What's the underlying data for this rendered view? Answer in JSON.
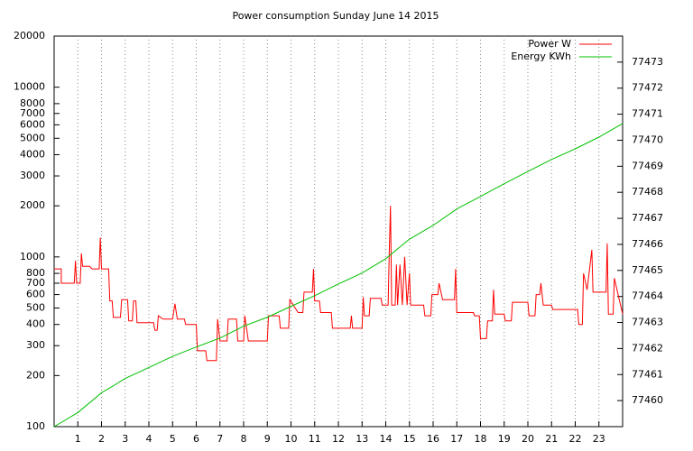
{
  "chart_data": {
    "type": "line",
    "title": "Power consumption Sunday June 14 2015",
    "xlim": [
      0,
      24
    ],
    "xticks": [
      1,
      2,
      3,
      4,
      5,
      6,
      7,
      8,
      9,
      10,
      11,
      12,
      13,
      14,
      15,
      16,
      17,
      18,
      19,
      20,
      21,
      22,
      23
    ],
    "ylim": [
      100,
      20000
    ],
    "log_y": true,
    "yticks": [
      100,
      200,
      300,
      400,
      500,
      600,
      700,
      800,
      1000,
      2000,
      3000,
      4000,
      5000,
      6000,
      7000,
      8000,
      10000,
      20000
    ],
    "y2lim": [
      77459,
      77474
    ],
    "y2ticks": [
      77460,
      77461,
      77462,
      77463,
      77464,
      77465,
      77466,
      77467,
      77468,
      77469,
      77470,
      77471,
      77472,
      77473
    ],
    "grid": "x",
    "legend": "top-right",
    "series": [
      {
        "name": "Power W",
        "color": "#ff0000",
        "x": [
          0,
          0.3,
          0.3,
          0.85,
          0.9,
          0.95,
          1.1,
          1.15,
          1.2,
          1.5,
          1.6,
          1.9,
          1.95,
          2.0,
          2.3,
          2.35,
          2.45,
          2.5,
          2.8,
          2.85,
          3.1,
          3.15,
          3.3,
          3.35,
          3.45,
          3.5,
          4.2,
          4.25,
          4.35,
          4.4,
          4.6,
          5.0,
          5.1,
          5.2,
          5.5,
          5.55,
          6.0,
          6.05,
          6.4,
          6.45,
          6.85,
          6.9,
          7.0,
          7.3,
          7.35,
          7.7,
          7.75,
          8.0,
          8.05,
          8.2,
          9.0,
          9.05,
          9.5,
          9.55,
          9.9,
          9.95,
          10.3,
          10.5,
          10.55,
          10.9,
          10.95,
          11.0,
          11.2,
          11.25,
          11.7,
          11.75,
          12.5,
          12.55,
          12.6,
          13.0,
          13.05,
          13.1,
          13.3,
          13.35,
          13.8,
          13.85,
          14.1,
          14.15,
          14.2,
          14.25,
          14.4,
          14.45,
          14.5,
          14.6,
          14.7,
          14.8,
          14.9,
          15.0,
          15.05,
          15.6,
          15.65,
          15.9,
          15.95,
          16.2,
          16.25,
          16.4,
          16.9,
          16.95,
          17.0,
          17.7,
          17.75,
          17.95,
          18.0,
          18.25,
          18.3,
          18.5,
          18.55,
          18.6,
          19.0,
          19.05,
          19.3,
          19.35,
          20.0,
          20.05,
          20.3,
          20.35,
          20.5,
          20.55,
          20.65,
          21.0,
          21.05,
          22.1,
          22.15,
          22.3,
          22.35,
          22.5,
          22.7,
          22.75,
          23.3,
          23.35,
          23.4,
          23.6,
          23.65,
          24
        ],
        "values": [
          850,
          850,
          700,
          700,
          950,
          700,
          700,
          1050,
          880,
          880,
          850,
          850,
          1300,
          850,
          850,
          550,
          550,
          440,
          440,
          560,
          560,
          420,
          420,
          550,
          550,
          410,
          410,
          370,
          370,
          450,
          430,
          430,
          530,
          430,
          430,
          400,
          400,
          280,
          280,
          245,
          245,
          430,
          320,
          320,
          430,
          430,
          320,
          320,
          450,
          320,
          320,
          450,
          450,
          380,
          380,
          560,
          470,
          470,
          620,
          620,
          850,
          550,
          550,
          470,
          470,
          380,
          380,
          450,
          380,
          380,
          580,
          450,
          450,
          570,
          570,
          520,
          520,
          1100,
          2000,
          520,
          520,
          900,
          520,
          900,
          520,
          1000,
          520,
          800,
          520,
          520,
          450,
          450,
          600,
          600,
          700,
          560,
          560,
          850,
          470,
          470,
          450,
          450,
          330,
          330,
          420,
          420,
          640,
          460,
          460,
          420,
          420,
          540,
          540,
          450,
          450,
          600,
          600,
          700,
          520,
          520,
          490,
          490,
          400,
          400,
          800,
          640,
          1100,
          620,
          620,
          1200,
          460,
          460,
          750,
          460
        ]
      },
      {
        "name": "Energy KWh",
        "color": "#00c000",
        "axis": "y2",
        "x": [
          0,
          1,
          2,
          2.5,
          3,
          4,
          5,
          6,
          7,
          8,
          9,
          10,
          11,
          12,
          13,
          14,
          15,
          16,
          17,
          18,
          19,
          20,
          21,
          22,
          23,
          24
        ],
        "values": [
          77459.0,
          77459.54,
          77460.3,
          77460.57,
          77460.85,
          77461.27,
          77461.7,
          77462.06,
          77462.4,
          77462.86,
          77463.2,
          77463.62,
          77464.03,
          77464.48,
          77464.9,
          77465.45,
          77466.2,
          77466.73,
          77467.36,
          77467.84,
          77468.33,
          77468.8,
          77469.26,
          77469.67,
          77470.12,
          77470.64
        ]
      }
    ]
  }
}
